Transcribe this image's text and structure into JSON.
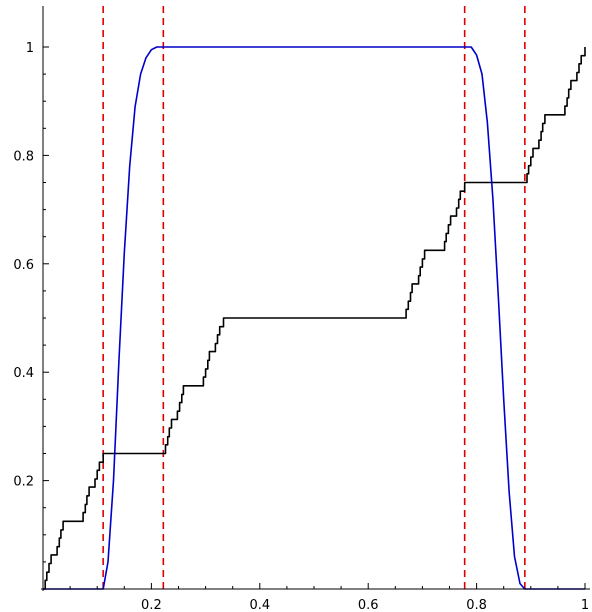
{
  "chart_data": {
    "type": "line",
    "title": "",
    "xlabel": "",
    "ylabel": "",
    "xlim": [
      0,
      1
    ],
    "ylim": [
      0,
      1
    ],
    "x_ticks": [
      0.2,
      0.4,
      0.6,
      0.8,
      1
    ],
    "x_tick_labels": [
      "0.2",
      "0.4",
      "0.6",
      "0.8",
      "1"
    ],
    "y_ticks": [
      0.2,
      0.4,
      0.6,
      0.8,
      1
    ],
    "y_tick_labels": [
      "0.2",
      "0.4",
      "0.6",
      "0.8",
      "1"
    ],
    "grid": false,
    "colors": {
      "staircase": "#000000",
      "bump": "#0000cc",
      "vlines": "#dd0000"
    },
    "series": [
      {
        "style": "step",
        "color": "#000000",
        "points": [
          [
            0.0,
            0.0
          ],
          [
            0.004,
            0.016
          ],
          [
            0.007,
            0.031
          ],
          [
            0.011,
            0.047
          ],
          [
            0.015,
            0.063
          ],
          [
            0.022,
            0.063
          ],
          [
            0.026,
            0.078
          ],
          [
            0.03,
            0.094
          ],
          [
            0.033,
            0.109
          ],
          [
            0.037,
            0.125
          ],
          [
            0.07,
            0.125
          ],
          [
            0.074,
            0.141
          ],
          [
            0.078,
            0.156
          ],
          [
            0.081,
            0.172
          ],
          [
            0.085,
            0.188
          ],
          [
            0.093,
            0.188
          ],
          [
            0.096,
            0.203
          ],
          [
            0.1,
            0.219
          ],
          [
            0.104,
            0.234
          ],
          [
            0.111,
            0.25
          ],
          [
            0.222,
            0.25
          ],
          [
            0.226,
            0.266
          ],
          [
            0.23,
            0.281
          ],
          [
            0.233,
            0.297
          ],
          [
            0.237,
            0.313
          ],
          [
            0.244,
            0.313
          ],
          [
            0.248,
            0.328
          ],
          [
            0.252,
            0.344
          ],
          [
            0.256,
            0.359
          ],
          [
            0.259,
            0.375
          ],
          [
            0.293,
            0.375
          ],
          [
            0.296,
            0.391
          ],
          [
            0.3,
            0.406
          ],
          [
            0.304,
            0.422
          ],
          [
            0.307,
            0.438
          ],
          [
            0.315,
            0.438
          ],
          [
            0.318,
            0.453
          ],
          [
            0.322,
            0.469
          ],
          [
            0.326,
            0.484
          ],
          [
            0.333,
            0.5
          ],
          [
            0.667,
            0.5
          ],
          [
            0.67,
            0.516
          ],
          [
            0.674,
            0.531
          ],
          [
            0.678,
            0.547
          ],
          [
            0.681,
            0.563
          ],
          [
            0.689,
            0.563
          ],
          [
            0.693,
            0.578
          ],
          [
            0.696,
            0.594
          ],
          [
            0.7,
            0.609
          ],
          [
            0.704,
            0.625
          ],
          [
            0.737,
            0.625
          ],
          [
            0.741,
            0.641
          ],
          [
            0.744,
            0.656
          ],
          [
            0.748,
            0.672
          ],
          [
            0.752,
            0.688
          ],
          [
            0.759,
            0.688
          ],
          [
            0.763,
            0.703
          ],
          [
            0.767,
            0.719
          ],
          [
            0.77,
            0.734
          ],
          [
            0.778,
            0.75
          ],
          [
            0.889,
            0.75
          ],
          [
            0.893,
            0.766
          ],
          [
            0.896,
            0.781
          ],
          [
            0.9,
            0.797
          ],
          [
            0.904,
            0.813
          ],
          [
            0.911,
            0.813
          ],
          [
            0.915,
            0.828
          ],
          [
            0.919,
            0.844
          ],
          [
            0.922,
            0.859
          ],
          [
            0.926,
            0.875
          ],
          [
            0.959,
            0.875
          ],
          [
            0.963,
            0.891
          ],
          [
            0.967,
            0.906
          ],
          [
            0.97,
            0.922
          ],
          [
            0.974,
            0.938
          ],
          [
            0.981,
            0.938
          ],
          [
            0.985,
            0.953
          ],
          [
            0.989,
            0.969
          ],
          [
            0.993,
            0.984
          ],
          [
            1.0,
            1.0
          ]
        ]
      },
      {
        "style": "smooth",
        "color": "#0000cc",
        "points": [
          [
            0.0,
            0.0
          ],
          [
            0.111,
            0.0
          ],
          [
            0.12,
            0.05
          ],
          [
            0.13,
            0.2
          ],
          [
            0.14,
            0.42
          ],
          [
            0.15,
            0.62
          ],
          [
            0.16,
            0.78
          ],
          [
            0.17,
            0.89
          ],
          [
            0.18,
            0.95
          ],
          [
            0.19,
            0.98
          ],
          [
            0.2,
            0.995
          ],
          [
            0.21,
            1.0
          ],
          [
            0.79,
            1.0
          ],
          [
            0.8,
            0.985
          ],
          [
            0.81,
            0.95
          ],
          [
            0.82,
            0.86
          ],
          [
            0.83,
            0.72
          ],
          [
            0.84,
            0.54
          ],
          [
            0.85,
            0.35
          ],
          [
            0.86,
            0.18
          ],
          [
            0.87,
            0.06
          ],
          [
            0.88,
            0.01
          ],
          [
            0.889,
            0.0
          ],
          [
            1.0,
            0.0
          ]
        ]
      }
    ],
    "vertical_lines": [
      0.111,
      0.222,
      0.778,
      0.889
    ]
  }
}
